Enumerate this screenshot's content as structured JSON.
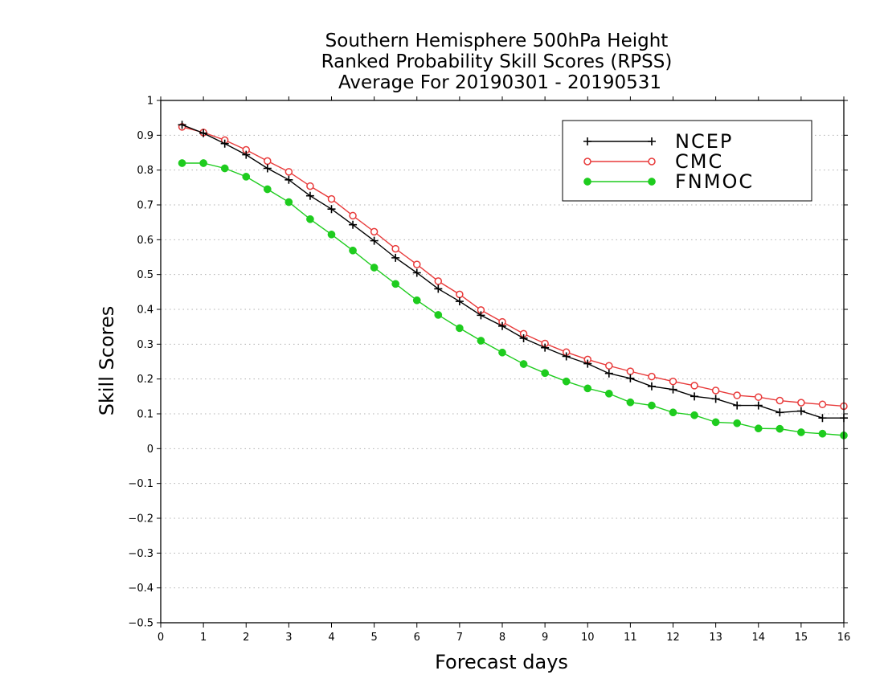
{
  "chart_data": {
    "type": "line",
    "title": [
      "Southern Hemisphere 500hPa Height",
      "Ranked Probability Skill Scores (RPSS)",
      "Average For 20190301 - 20190531"
    ],
    "xlabel": "Forecast days",
    "ylabel": "Skill Scores",
    "xlim": [
      0,
      16
    ],
    "ylim": [
      -0.5,
      1
    ],
    "xticks": [
      0,
      1,
      2,
      3,
      4,
      5,
      6,
      7,
      8,
      9,
      10,
      11,
      12,
      13,
      14,
      15,
      16
    ],
    "yticks": [
      -0.5,
      -0.4,
      -0.3,
      -0.2,
      -0.1,
      0,
      0.1,
      0.2,
      0.3,
      0.4,
      0.5,
      0.6,
      0.7,
      0.8,
      0.9,
      1
    ],
    "ytick_labels": [
      "−0.5",
      "−0.4",
      "−0.3",
      "−0.2",
      "−0.1",
      "0",
      "0.1",
      "0.2",
      "0.3",
      "0.4",
      "0.5",
      "0.6",
      "0.7",
      "0.8",
      "0.9",
      "1"
    ],
    "grid": "horizontal-dotted",
    "legend_position": "top-right",
    "x": [
      0.5,
      1,
      1.5,
      2,
      2.5,
      3,
      3.5,
      4,
      4.5,
      5,
      5.5,
      6,
      6.5,
      7,
      7.5,
      8,
      8.5,
      9,
      9.5,
      10,
      10.5,
      11,
      11.5,
      12,
      12.5,
      13,
      13.5,
      14,
      14.5,
      15,
      15.5,
      16
    ],
    "series": [
      {
        "name": "NCEP",
        "color": "#000000",
        "marker": "plus",
        "values": [
          0.93,
          0.906,
          0.876,
          0.844,
          0.805,
          0.772,
          0.726,
          0.688,
          0.643,
          0.597,
          0.548,
          0.505,
          0.459,
          0.423,
          0.383,
          0.352,
          0.317,
          0.29,
          0.265,
          0.244,
          0.216,
          0.202,
          0.179,
          0.17,
          0.15,
          0.143,
          0.124,
          0.124,
          0.104,
          0.108,
          0.088,
          0.088
        ]
      },
      {
        "name": "CMC",
        "color": "#e83a3a",
        "marker": "open-circle",
        "values": [
          0.924,
          0.908,
          0.886,
          0.858,
          0.826,
          0.795,
          0.754,
          0.717,
          0.669,
          0.623,
          0.574,
          0.529,
          0.481,
          0.443,
          0.398,
          0.364,
          0.33,
          0.302,
          0.277,
          0.256,
          0.238,
          0.222,
          0.207,
          0.193,
          0.181,
          0.167,
          0.153,
          0.148,
          0.138,
          0.132,
          0.127,
          0.122
        ]
      },
      {
        "name": "FNMOC",
        "color": "#1ecc1e",
        "marker": "filled-circle",
        "values": [
          0.82,
          0.82,
          0.805,
          0.781,
          0.745,
          0.708,
          0.659,
          0.615,
          0.569,
          0.52,
          0.473,
          0.426,
          0.384,
          0.346,
          0.31,
          0.276,
          0.243,
          0.217,
          0.193,
          0.173,
          0.158,
          0.133,
          0.124,
          0.104,
          0.096,
          0.076,
          0.073,
          0.058,
          0.057,
          0.047,
          0.043,
          0.038
        ]
      }
    ]
  }
}
